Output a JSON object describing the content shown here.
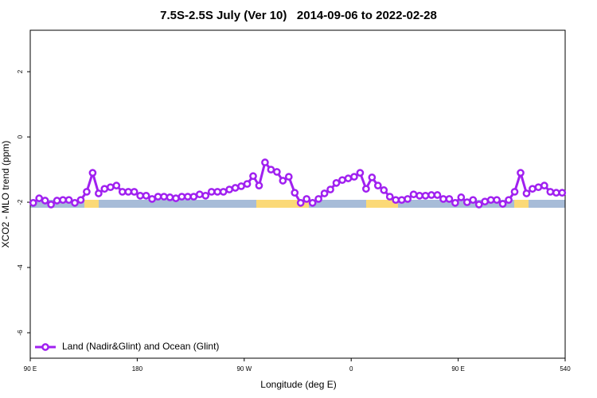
{
  "chart_data": {
    "type": "line",
    "title": "7.5S-2.5S July (Ver 10)   2014-09-06 to 2022-02-28",
    "x_label": "Longitude (deg E)",
    "y_label": "XCO2 - MLO trend (ppm)",
    "xlim": [
      90,
      540
    ],
    "xticks": [
      {
        "value": 90,
        "label": "90 E"
      },
      180,
      {
        "value": 270,
        "label": "90 W"
      },
      {
        "value": 360,
        "label": "0"
      },
      {
        "value": 450,
        "label": "90 E"
      },
      540
    ],
    "ylim": [
      -6.78,
      3.27
    ],
    "yticks": [
      -6,
      -4,
      -2,
      0,
      2
    ],
    "legend": "bottomleft",
    "x": [
      92.5,
      97.5,
      102.5,
      107.5,
      112.5,
      117.5,
      122.5,
      127.5,
      132.5,
      137.5,
      142.5,
      147.5,
      152.5,
      157.5,
      162.5,
      167.5,
      172.5,
      177.5,
      182.5,
      187.5,
      192.5,
      197.5,
      202.5,
      207.5,
      212.5,
      217.5,
      222.5,
      227.5,
      232.5,
      237.5,
      242.5,
      247.5,
      252.5,
      257.5,
      262.5,
      267.5,
      272.5,
      277.5,
      282.5,
      287.5,
      292.5,
      297.5,
      302.5,
      307.5,
      312.5,
      317.5,
      322.5,
      327.5,
      332.5,
      337.5,
      342.5,
      347.5,
      352.5,
      357.5,
      362.5,
      367.5,
      372.5,
      377.5,
      382.5,
      387.5,
      392.5,
      397.5,
      402.5,
      407.5,
      412.5,
      417.5,
      422.5,
      427.5,
      432.5,
      437.5,
      442.5,
      447.5,
      452.5,
      457.5,
      462.5,
      467.5,
      472.5,
      477.5,
      482.5,
      487.5,
      492.5,
      497.5,
      502.5,
      507.5,
      512.5,
      517.5,
      522.5,
      527.5,
      532.5,
      537.5
    ],
    "series": [
      {
        "name": "Land (Nadir&Glint) and Ocean (Glint)",
        "color": "#a020f0",
        "values": [
          -2.02,
          -1.88,
          -1.95,
          -2.07,
          -1.95,
          -1.93,
          -1.93,
          -2.02,
          -1.93,
          -1.68,
          -1.1,
          -1.73,
          -1.59,
          -1.54,
          -1.49,
          -1.68,
          -1.68,
          -1.68,
          -1.8,
          -1.8,
          -1.9,
          -1.83,
          -1.83,
          -1.85,
          -1.88,
          -1.83,
          -1.83,
          -1.83,
          -1.76,
          -1.8,
          -1.68,
          -1.68,
          -1.68,
          -1.61,
          -1.56,
          -1.51,
          -1.44,
          -1.2,
          -1.49,
          -0.78,
          -1.0,
          -1.07,
          -1.34,
          -1.22,
          -1.71,
          -2.02,
          -1.9,
          -2.02,
          -1.9,
          -1.73,
          -1.61,
          -1.41,
          -1.32,
          -1.27,
          -1.22,
          -1.1,
          -1.59,
          -1.24,
          -1.49,
          -1.63,
          -1.83,
          -1.93,
          -1.93,
          -1.9,
          -1.76,
          -1.8,
          -1.8,
          -1.78,
          -1.78,
          -1.9,
          -1.9,
          -2.02,
          -1.85,
          -2.0,
          -1.93,
          -2.07,
          -1.98,
          -1.93,
          -1.93,
          -2.05,
          -1.93,
          -1.68,
          -1.1,
          -1.73,
          -1.59,
          -1.54,
          -1.49,
          -1.68,
          -1.71,
          -1.71
        ]
      }
    ]
  }
}
